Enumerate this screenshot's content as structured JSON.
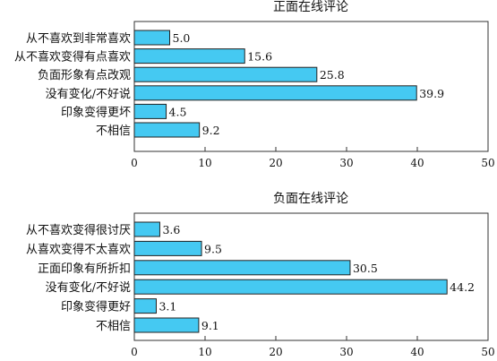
{
  "chart_data": [
    {
      "type": "bar",
      "orientation": "horizontal",
      "title": "正面在线评论",
      "categories": [
        "从不喜欢到非常喜欢",
        "从不喜欢变得有点喜欢",
        "负面形象有点改观",
        "没有变化/不好说",
        "印象变得更坏",
        "不相信"
      ],
      "values": [
        5.0,
        15.6,
        25.8,
        39.9,
        4.5,
        9.2
      ],
      "value_labels": [
        "5.0",
        "15.6",
        "25.8",
        "39.9",
        "4.5",
        "9.2"
      ],
      "xlim": [
        0,
        50
      ],
      "xticks": [
        0,
        10,
        20,
        30,
        40,
        50
      ],
      "xtick_labels": [
        "0",
        "10",
        "20",
        "30",
        "40",
        "50"
      ],
      "xlabel": "",
      "ylabel": "",
      "grid": false,
      "bar_color": "#45c9f2"
    },
    {
      "type": "bar",
      "orientation": "horizontal",
      "title": "负面在线评论",
      "categories": [
        "从不喜欢变得很讨厌",
        "从喜欢变得不太喜欢",
        "正面印象有所折扣",
        "没有变化/不好说",
        "印象变得更好",
        "不相信"
      ],
      "values": [
        3.6,
        9.5,
        30.5,
        44.2,
        3.1,
        9.1
      ],
      "value_labels": [
        "3.6",
        "9.5",
        "30.5",
        "44.2",
        "3.1",
        "9.1"
      ],
      "xlim": [
        0,
        50
      ],
      "xticks": [
        0,
        10,
        20,
        30,
        40,
        50
      ],
      "xtick_labels": [
        "0",
        "10",
        "20",
        "30",
        "40",
        "50"
      ],
      "xlabel": "",
      "ylabel": "",
      "grid": false,
      "bar_color": "#45c9f2"
    }
  ]
}
